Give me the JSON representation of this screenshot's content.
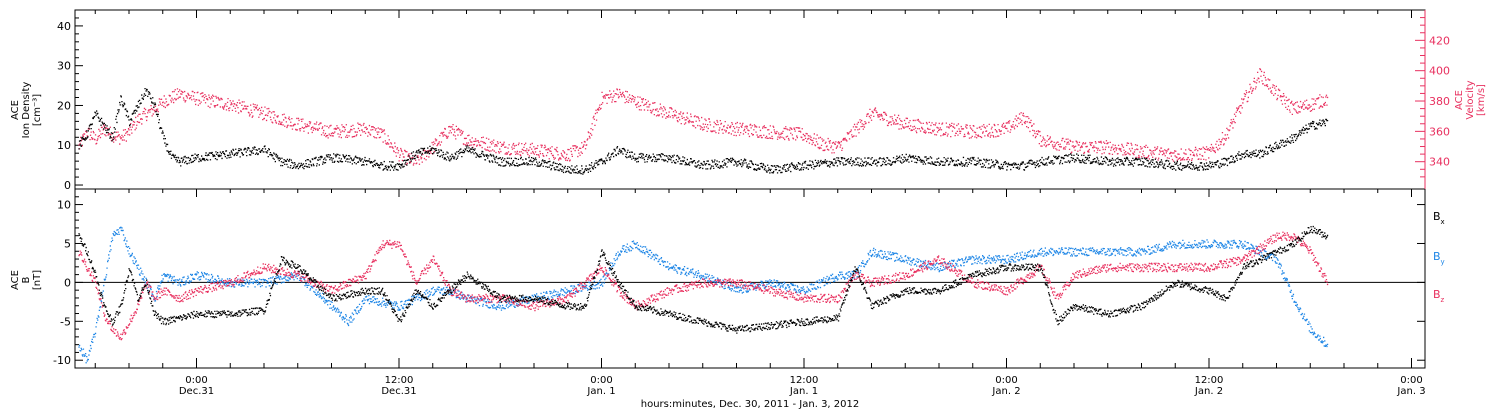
{
  "figure": {
    "xaxis_title": "hours:minutes, Dec. 30, 2011 - Jan.  3, 2012",
    "x_ticks": [
      {
        "time": "0:00",
        "date": "Dec.31",
        "hour": 12
      },
      {
        "time": "12:00",
        "date": "Dec.31",
        "hour": 24
      },
      {
        "time": "0:00",
        "date": "Jan. 1",
        "hour": 36
      },
      {
        "time": "12:00",
        "date": "Jan. 1",
        "hour": 48
      },
      {
        "time": "0:00",
        "date": "Jan. 2",
        "hour": 60
      },
      {
        "time": "12:00",
        "date": "Jan. 2",
        "hour": 72
      },
      {
        "time": "0:00",
        "date": "Jan. 3",
        "hour": 84
      }
    ]
  },
  "colors": {
    "black": "#000000",
    "velocity": "#e8305f",
    "by": "#1e86e6",
    "bz": "#e8305f"
  },
  "chart_data": [
    {
      "type": "scatter",
      "title": "",
      "xlabel": "hours:minutes, Dec. 30, 2011 - Jan.  3, 2012",
      "xlim": [
        4.8,
        84.8
      ],
      "left_axis": {
        "label_lines": [
          "ACE",
          "Ion Density",
          "[cm⁻³]"
        ],
        "ylim": [
          -1,
          44
        ],
        "ticks": [
          0,
          10,
          20,
          30,
          40
        ]
      },
      "right_axis": {
        "label_lines": [
          "ACE",
          "Velocity",
          "[km/s]"
        ],
        "ylim": [
          322,
          440
        ],
        "ticks": [
          340,
          360,
          380,
          400,
          420
        ]
      },
      "series": [
        {
          "color_key": "black",
          "axis": "left",
          "x": [
            5.0,
            5.5,
            6.0,
            6.5,
            7.0,
            7.5,
            8.0,
            8.5,
            9.0,
            9.5,
            10.0,
            10.5,
            11.0,
            12.0,
            14.0,
            16.0,
            17.0,
            18.0,
            20.0,
            22.0,
            23.0,
            24.0,
            25.0,
            26.0,
            27.0,
            28.0,
            30.0,
            32.0,
            34.0,
            35.0,
            36.0,
            37.0,
            38.0,
            40.0,
            42.0,
            44.0,
            46.0,
            48.0,
            50.0,
            52.0,
            53.0,
            54.0,
            56.0,
            58.0,
            60.0,
            61.0,
            62.0,
            64.0,
            66.0,
            68.0,
            70.0,
            72.0,
            73.0,
            74.0,
            75.0,
            76.0,
            77.0,
            78.0,
            79.0
          ],
          "values": [
            10,
            13,
            18,
            15,
            12,
            22,
            16,
            20,
            24,
            20,
            12,
            7,
            6,
            7,
            8,
            9,
            6,
            5,
            7,
            6,
            5,
            5,
            8,
            9,
            7,
            9,
            6,
            6,
            4,
            4,
            6,
            9,
            7,
            7,
            5,
            6,
            4,
            5,
            6,
            6,
            6,
            7,
            6,
            6,
            5,
            5,
            6,
            7,
            6,
            6,
            5,
            5,
            6,
            8,
            8,
            10,
            12,
            15,
            16
          ]
        },
        {
          "color_key": "velocity",
          "axis": "right",
          "x": [
            5.0,
            5.5,
            6.0,
            6.5,
            7.0,
            7.5,
            8.0,
            8.5,
            9.0,
            9.5,
            10.0,
            11.0,
            12.0,
            14.0,
            16.0,
            18.0,
            20.0,
            22.0,
            23.0,
            24.0,
            25.0,
            26.0,
            27.0,
            28.0,
            30.0,
            32.0,
            34.0,
            35.0,
            36.0,
            37.0,
            38.0,
            40.0,
            42.0,
            44.0,
            46.0,
            48.0,
            49.0,
            50.0,
            52.0,
            54.0,
            56.0,
            58.0,
            60.0,
            61.0,
            62.0,
            64.0,
            66.0,
            68.0,
            70.0,
            72.0,
            73.0,
            74.0,
            75.0,
            76.0,
            77.0,
            78.0,
            79.0
          ],
          "values": [
            350,
            360,
            355,
            362,
            358,
            356,
            360,
            368,
            372,
            375,
            380,
            385,
            382,
            378,
            372,
            365,
            360,
            362,
            358,
            345,
            340,
            350,
            362,
            355,
            350,
            348,
            345,
            350,
            382,
            385,
            380,
            372,
            365,
            362,
            360,
            358,
            352,
            350,
            372,
            365,
            362,
            360,
            362,
            370,
            355,
            350,
            350,
            347,
            345,
            346,
            358,
            380,
            398,
            385,
            375,
            378,
            382
          ]
        }
      ]
    },
    {
      "type": "scatter",
      "title": "",
      "xlabel": "hours:minutes, Dec. 30, 2011 - Jan.  3, 2012",
      "xlim": [
        4.8,
        84.8
      ],
      "ylabel_lines": [
        "ACE",
        "B",
        "[nT]"
      ],
      "ylim": [
        -11,
        12
      ],
      "yticks": [
        -10,
        -5,
        0,
        5,
        10
      ],
      "zero_line": true,
      "series": [
        {
          "name": "Bx",
          "color_key": "black",
          "x": [
            5.0,
            5.5,
            6.0,
            6.5,
            7.0,
            7.5,
            8.0,
            8.5,
            9.0,
            9.5,
            10.0,
            11.0,
            12.0,
            14.0,
            16.0,
            17.0,
            18.0,
            20.0,
            22.0,
            23.0,
            24.0,
            25.0,
            26.0,
            27.0,
            28.0,
            30.0,
            32.0,
            34.0,
            35.0,
            36.0,
            37.0,
            38.0,
            40.0,
            42.0,
            44.0,
            46.0,
            48.0,
            50.0,
            51.0,
            52.0,
            54.0,
            56.0,
            58.0,
            60.0,
            62.0,
            63.0,
            64.0,
            66.0,
            68.0,
            70.0,
            72.0,
            73.0,
            74.0,
            76.0,
            77.0,
            78.0,
            79.0
          ],
          "values": [
            6,
            4,
            1,
            -3,
            -5,
            -3,
            2,
            -2,
            0,
            -4,
            -5,
            -4.5,
            -4,
            -4,
            -3.5,
            3,
            2,
            -2,
            -1,
            -1,
            -5,
            -1,
            -3,
            -1,
            1,
            -2,
            -2,
            -3,
            -3,
            4,
            0,
            -3,
            -4,
            -5,
            -6,
            -5.5,
            -5,
            -4.5,
            2,
            -3,
            -1,
            -1,
            1,
            2,
            2,
            -5,
            -3,
            -4,
            -3,
            0,
            -1,
            -2,
            2,
            4,
            5,
            7,
            6
          ]
        },
        {
          "name": "By",
          "color_key": "by",
          "x": [
            5.0,
            5.5,
            6.0,
            6.5,
            7.0,
            7.5,
            8.0,
            8.5,
            9.0,
            9.5,
            10.0,
            11.0,
            12.0,
            14.0,
            16.0,
            18.0,
            20.0,
            21.0,
            22.0,
            24.0,
            26.0,
            27.0,
            28.0,
            30.0,
            32.0,
            34.0,
            36.0,
            37.0,
            38.0,
            40.0,
            42.0,
            44.0,
            46.0,
            48.0,
            50.0,
            51.0,
            52.0,
            54.0,
            56.0,
            58.0,
            60.0,
            62.0,
            64.0,
            66.0,
            68.0,
            70.0,
            72.0,
            74.0,
            76.0,
            77.0,
            78.0,
            79.0
          ],
          "values": [
            -8,
            -10,
            -6,
            0,
            6,
            7,
            4,
            2,
            0,
            -2,
            1,
            0,
            1,
            0,
            0,
            1,
            -3,
            -5,
            -2,
            -3,
            -1,
            -1,
            -2,
            -3,
            -2,
            -1,
            0,
            4,
            5,
            2,
            1,
            -1,
            0,
            -1,
            1,
            1,
            4,
            3,
            2,
            3,
            3,
            4,
            4,
            4,
            4,
            5,
            5,
            5,
            3,
            -2,
            -6,
            -8
          ]
        },
        {
          "name": "Bz",
          "color_key": "bz",
          "x": [
            5.0,
            5.5,
            6.0,
            6.5,
            7.0,
            7.5,
            8.0,
            8.5,
            9.0,
            9.5,
            10.0,
            11.0,
            12.0,
            14.0,
            16.0,
            18.0,
            20.0,
            22.0,
            23.0,
            24.0,
            25.0,
            26.0,
            27.0,
            28.0,
            30.0,
            32.0,
            34.0,
            36.0,
            37.0,
            38.0,
            40.0,
            42.0,
            44.0,
            46.0,
            48.0,
            50.0,
            51.0,
            52.0,
            54.0,
            56.0,
            58.0,
            60.0,
            62.0,
            63.0,
            64.0,
            66.0,
            68.0,
            70.0,
            72.0,
            74.0,
            76.0,
            77.0,
            78.0,
            79.0
          ],
          "values": [
            4,
            2,
            0,
            -4,
            -6,
            -7,
            -5,
            -3,
            0,
            -2,
            -1,
            -2,
            -1,
            0,
            2,
            1,
            -1,
            1,
            5,
            5,
            0,
            3,
            -1,
            -2,
            -2,
            -3,
            -2,
            2,
            -1,
            -3,
            -1,
            0,
            0,
            -1,
            -2,
            -2,
            1,
            0,
            1,
            3,
            0,
            -1,
            2,
            -2,
            1,
            2,
            2,
            2,
            2,
            3,
            6,
            6,
            4,
            0
          ]
        }
      ],
      "legend": {
        "placement": "right"
      }
    }
  ]
}
